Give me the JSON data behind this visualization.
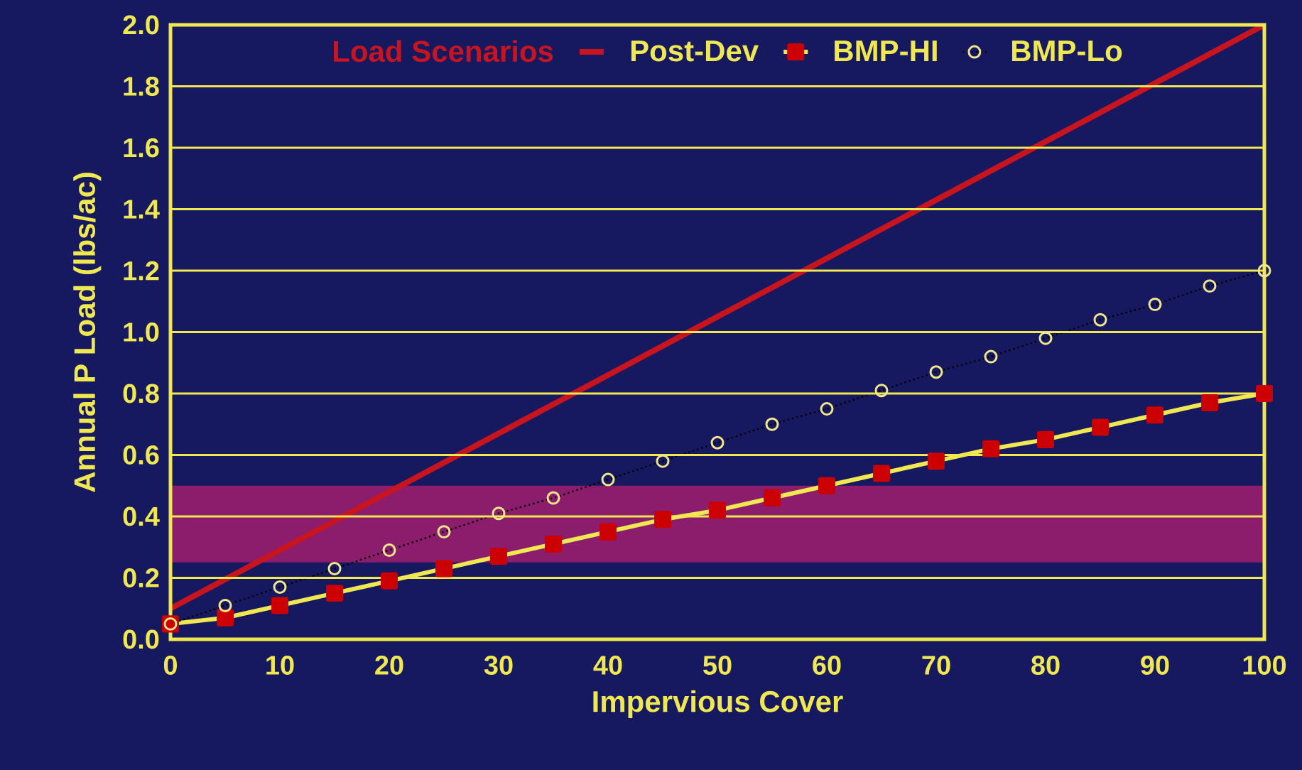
{
  "chart_data": {
    "type": "line",
    "xlabel": "Impervious Cover",
    "ylabel": "Annual P Load (lbs/ac)",
    "legend_title": "Load Scenarios",
    "x": [
      0,
      5,
      10,
      15,
      20,
      25,
      30,
      35,
      40,
      45,
      50,
      55,
      60,
      65,
      70,
      75,
      80,
      85,
      90,
      95,
      100
    ],
    "series": [
      {
        "name": "Post-Dev",
        "color": "#c8141e",
        "marker": "none",
        "line_style": "solid",
        "x": [
          0,
          50,
          100
        ],
        "values": [
          0.1,
          1.05,
          2.0
        ]
      },
      {
        "name": "BMP-HI",
        "color": "#f0e850",
        "marker": "square",
        "line_style": "solid",
        "values": [
          0.05,
          0.07,
          0.11,
          0.15,
          0.19,
          0.23,
          0.27,
          0.31,
          0.35,
          0.39,
          0.42,
          0.46,
          0.5,
          0.54,
          0.58,
          0.62,
          0.65,
          0.69,
          0.73,
          0.77,
          0.8
        ]
      },
      {
        "name": "BMP-Lo",
        "color": "#f0e68c",
        "marker": "circle",
        "line_style": "dotted",
        "values": [
          0.05,
          0.11,
          0.17,
          0.23,
          0.29,
          0.35,
          0.41,
          0.46,
          0.52,
          0.58,
          0.64,
          0.7,
          0.75,
          0.81,
          0.87,
          0.92,
          0.98,
          1.04,
          1.09,
          1.15,
          1.2
        ]
      }
    ],
    "xlim": [
      0,
      100
    ],
    "ylim": [
      0,
      2.0
    ],
    "xticks": [
      0,
      10,
      20,
      30,
      40,
      50,
      60,
      70,
      80,
      90,
      100
    ],
    "yticks": [
      {
        "value": 0,
        "label": "0.0"
      },
      0.2,
      0.4,
      0.6,
      0.8,
      {
        "value": 1.0,
        "label": "1.0"
      },
      1.2,
      1.4,
      1.6,
      1.8,
      {
        "value": 2.0,
        "label": "2.0"
      }
    ],
    "bands": [
      {
        "axis": "y",
        "from": 0.25,
        "to": 0.5,
        "color": "#8c1c6c"
      }
    ],
    "grid": "y",
    "legend": "top"
  }
}
